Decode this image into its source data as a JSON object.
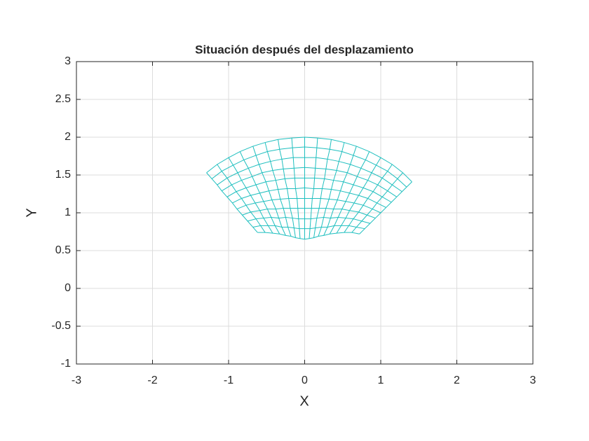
{
  "chart_data": {
    "type": "mesh",
    "title": "Situación después del desplazamiento",
    "xlabel": "X",
    "ylabel": "Y",
    "xlim": [
      -3,
      3
    ],
    "xticks": [
      -3,
      -2,
      -1,
      0,
      1,
      2,
      3
    ],
    "ylim": [
      -1,
      3
    ],
    "yticks": [
      -1,
      -0.5,
      0,
      0.5,
      1,
      1.5,
      2,
      2.5,
      3
    ],
    "grid": true,
    "color": "#1fbfbf",
    "series": [
      {
        "x": [
          -0.62,
          -0.68,
          -0.75,
          -0.82,
          -0.89,
          -0.95,
          -1.02,
          -1.09,
          -1.15,
          -1.22,
          -1.29
        ],
        "y": [
          0.74,
          0.81,
          0.89,
          0.97,
          1.05,
          1.13,
          1.21,
          1.29,
          1.37,
          1.45,
          1.53
        ]
      },
      {
        "x": [
          -0.52,
          -0.58,
          -0.64,
          -0.71,
          -0.77,
          -0.83,
          -0.9,
          -0.96,
          -1.02,
          -1.09,
          -1.15
        ],
        "y": [
          0.74,
          0.83,
          0.92,
          1.01,
          1.1,
          1.19,
          1.28,
          1.37,
          1.46,
          1.55,
          1.64
        ]
      },
      {
        "x": [
          -0.42,
          -0.48,
          -0.54,
          -0.59,
          -0.65,
          -0.71,
          -0.77,
          -0.83,
          -0.88,
          -0.94,
          -1.0
        ],
        "y": [
          0.73,
          0.83,
          0.93,
          1.03,
          1.13,
          1.23,
          1.33,
          1.43,
          1.53,
          1.63,
          1.73
        ]
      },
      {
        "x": [
          -0.33,
          -0.39,
          -0.44,
          -0.49,
          -0.54,
          -0.59,
          -0.64,
          -0.69,
          -0.74,
          -0.8,
          -0.85
        ],
        "y": [
          0.72,
          0.83,
          0.94,
          1.05,
          1.15,
          1.26,
          1.37,
          1.48,
          1.59,
          1.7,
          1.81
        ]
      },
      {
        "x": [
          -0.25,
          -0.3,
          -0.34,
          -0.38,
          -0.43,
          -0.47,
          -0.51,
          -0.56,
          -0.6,
          -0.64,
          -0.68
        ],
        "y": [
          0.7,
          0.81,
          0.93,
          1.05,
          1.17,
          1.29,
          1.41,
          1.53,
          1.64,
          1.76,
          1.88
        ]
      },
      {
        "x": [
          -0.18,
          -0.22,
          -0.25,
          -0.28,
          -0.32,
          -0.35,
          -0.38,
          -0.42,
          -0.45,
          -0.49,
          -0.52
        ],
        "y": [
          0.69,
          0.81,
          0.94,
          1.06,
          1.18,
          1.31,
          1.43,
          1.56,
          1.68,
          1.81,
          1.93
        ]
      },
      {
        "x": [
          -0.12,
          -0.14,
          -0.16,
          -0.19,
          -0.21,
          -0.23,
          -0.26,
          -0.28,
          -0.3,
          -0.33,
          -0.35
        ],
        "y": [
          0.67,
          0.8,
          0.93,
          1.06,
          1.19,
          1.32,
          1.45,
          1.58,
          1.71,
          1.84,
          1.97
        ]
      },
      {
        "x": [
          -0.06,
          -0.07,
          -0.08,
          -0.09,
          -0.1,
          -0.12,
          -0.13,
          -0.14,
          -0.15,
          -0.16,
          -0.17
        ],
        "y": [
          0.66,
          0.79,
          0.92,
          1.06,
          1.19,
          1.32,
          1.46,
          1.59,
          1.73,
          1.86,
          1.99
        ]
      },
      {
        "x": [
          0,
          0,
          0,
          0,
          0,
          0,
          0,
          0,
          0,
          0,
          0
        ],
        "y": [
          0.65,
          0.79,
          0.92,
          1.06,
          1.19,
          1.33,
          1.46,
          1.6,
          1.73,
          1.87,
          2.0
        ]
      },
      {
        "x": [
          0.06,
          0.07,
          0.08,
          0.09,
          0.1,
          0.12,
          0.13,
          0.14,
          0.15,
          0.16,
          0.17
        ],
        "y": [
          0.66,
          0.79,
          0.92,
          1.06,
          1.19,
          1.32,
          1.46,
          1.59,
          1.73,
          1.86,
          1.99
        ]
      },
      {
        "x": [
          0.12,
          0.14,
          0.16,
          0.19,
          0.21,
          0.23,
          0.26,
          0.28,
          0.3,
          0.33,
          0.35
        ],
        "y": [
          0.67,
          0.8,
          0.93,
          1.06,
          1.19,
          1.32,
          1.45,
          1.58,
          1.71,
          1.84,
          1.97
        ]
      },
      {
        "x": [
          0.18,
          0.22,
          0.25,
          0.28,
          0.32,
          0.35,
          0.38,
          0.42,
          0.45,
          0.49,
          0.52
        ],
        "y": [
          0.69,
          0.81,
          0.94,
          1.06,
          1.18,
          1.31,
          1.43,
          1.56,
          1.68,
          1.81,
          1.93
        ]
      },
      {
        "x": [
          0.25,
          0.3,
          0.34,
          0.38,
          0.43,
          0.47,
          0.51,
          0.56,
          0.6,
          0.64,
          0.68
        ],
        "y": [
          0.7,
          0.81,
          0.93,
          1.05,
          1.17,
          1.29,
          1.41,
          1.53,
          1.64,
          1.76,
          1.88
        ]
      },
      {
        "x": [
          0.33,
          0.39,
          0.44,
          0.49,
          0.54,
          0.59,
          0.64,
          0.69,
          0.74,
          0.8,
          0.85
        ],
        "y": [
          0.72,
          0.83,
          0.94,
          1.05,
          1.15,
          1.26,
          1.37,
          1.48,
          1.59,
          1.7,
          1.81
        ]
      },
      {
        "x": [
          0.42,
          0.48,
          0.54,
          0.59,
          0.65,
          0.71,
          0.77,
          0.83,
          0.88,
          0.94,
          1.0
        ],
        "y": [
          0.73,
          0.83,
          0.93,
          1.03,
          1.13,
          1.23,
          1.33,
          1.43,
          1.53,
          1.63,
          1.73
        ]
      },
      {
        "x": [
          0.52,
          0.58,
          0.64,
          0.71,
          0.77,
          0.83,
          0.9,
          0.96,
          1.02,
          1.09,
          1.15
        ],
        "y": [
          0.74,
          0.83,
          0.92,
          1.01,
          1.1,
          1.19,
          1.28,
          1.37,
          1.46,
          1.55,
          1.64
        ]
      },
      {
        "x": [
          0.62,
          0.68,
          0.75,
          0.82,
          0.89,
          0.95,
          1.02,
          1.09,
          1.15,
          1.22,
          1.29
        ],
        "y": [
          0.74,
          0.81,
          0.89,
          0.97,
          1.05,
          1.13,
          1.21,
          1.29,
          1.37,
          1.45,
          1.53
        ]
      },
      {
        "x": [
          0.72,
          0.79,
          0.86,
          0.93,
          1.0,
          1.07,
          1.14,
          1.21,
          1.28,
          1.34,
          1.41
        ],
        "y": [
          0.72,
          0.79,
          0.86,
          0.93,
          1.0,
          1.07,
          1.14,
          1.21,
          1.28,
          1.34,
          1.41
        ]
      }
    ]
  }
}
